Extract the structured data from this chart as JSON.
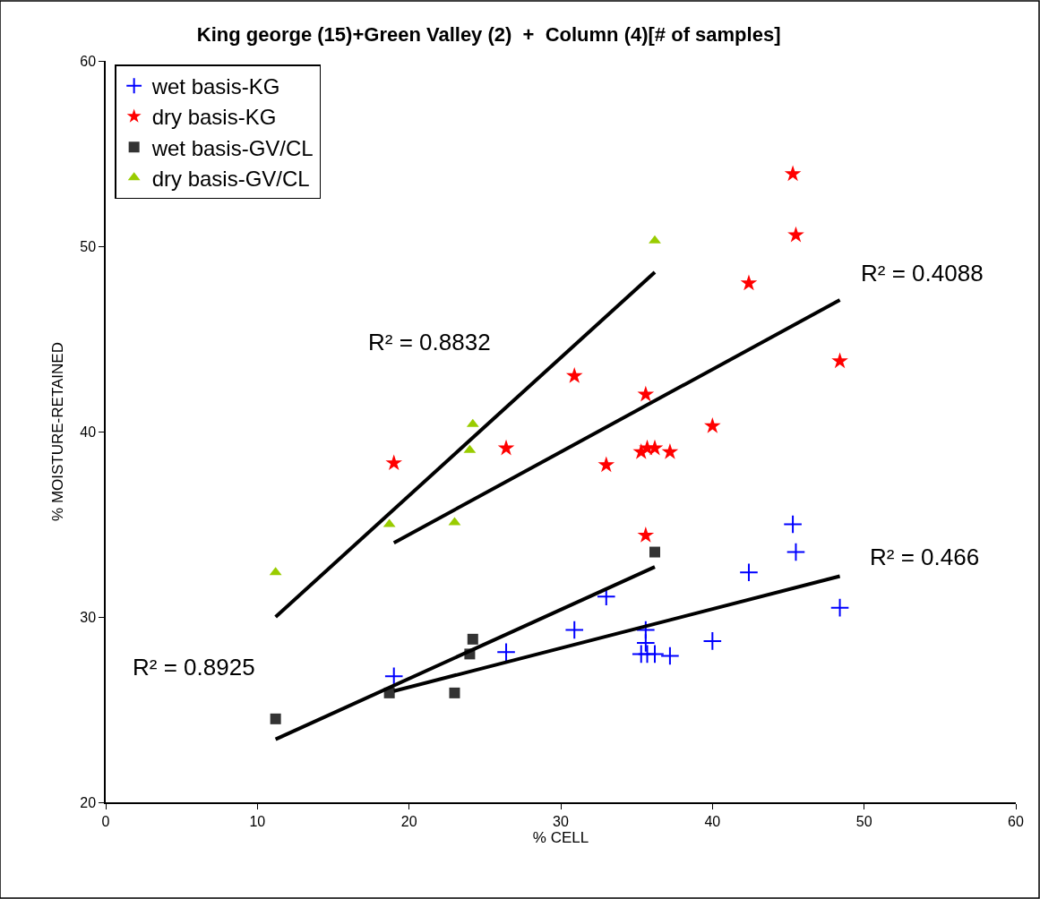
{
  "chart_data": {
    "type": "scatter",
    "title": "King george (15)+Green Valley (2)  +  Column (4)[# of samples]",
    "xlabel": "% CELL",
    "ylabel": "% MOISTURE-RETAINED",
    "xlim": [
      0,
      60
    ],
    "xticks": [
      0,
      10,
      20,
      30,
      40,
      50,
      60
    ],
    "ylim": [
      20,
      60
    ],
    "yticks": [
      20,
      30,
      40,
      50,
      60
    ],
    "legend": "top left",
    "series": [
      {
        "name": "wet basis-KG",
        "color": "#0000ff",
        "marker": "cross",
        "x": [
          19.0,
          26.4,
          30.9,
          33.0,
          35.6,
          35.6,
          35.3,
          35.7,
          36.2,
          37.2,
          40.0,
          42.4,
          45.3,
          45.5,
          48.4
        ],
        "values": [
          26.8,
          28.1,
          29.3,
          31.1,
          29.3,
          28.6,
          28.0,
          28.0,
          28.0,
          27.9,
          28.7,
          32.4,
          35.0,
          33.5,
          30.5
        ]
      },
      {
        "name": "dry basis-KG",
        "color": "#ff0000",
        "marker": "star",
        "x": [
          19.0,
          26.4,
          30.9,
          33.0,
          35.6,
          35.6,
          35.3,
          35.7,
          36.2,
          37.2,
          40.0,
          42.4,
          45.3,
          45.5,
          48.4
        ],
        "values": [
          38.3,
          39.1,
          43.0,
          38.2,
          42.0,
          34.4,
          38.9,
          39.1,
          39.1,
          38.9,
          40.3,
          48.0,
          53.9,
          50.6,
          43.8
        ]
      },
      {
        "name": "wet basis-GV/CL",
        "color": "#333333",
        "marker": "square",
        "x": [
          11.2,
          18.7,
          23.0,
          24.0,
          24.2,
          36.2
        ],
        "values": [
          24.5,
          25.9,
          25.9,
          28.0,
          28.8,
          33.5
        ]
      },
      {
        "name": "dry basis-GV/CL",
        "color": "#99cc00",
        "marker": "triangle",
        "x": [
          11.2,
          18.7,
          23.0,
          24.0,
          24.2,
          36.2
        ],
        "values": [
          32.4,
          35.0,
          35.1,
          39.0,
          40.4,
          50.3
        ]
      },
      {
        "type": "line",
        "color": "#000000",
        "marker": "none",
        "x": [
          11.2,
          36.2
        ],
        "values": [
          30.0,
          48.6
        ]
      },
      {
        "type": "line",
        "color": "#000000",
        "marker": "none",
        "x": [
          19.0,
          48.4
        ],
        "values": [
          34.0,
          47.1
        ]
      },
      {
        "type": "line",
        "color": "#000000",
        "marker": "none",
        "x": [
          11.2,
          36.2
        ],
        "values": [
          23.4,
          32.7
        ]
      },
      {
        "type": "line",
        "color": "#000000",
        "marker": "none",
        "x": [
          19.0,
          48.4
        ],
        "values": [
          26.0,
          32.2
        ]
      }
    ],
    "annotations": [
      "R² = 0.8832",
      "R² = 0.4088",
      "R² = 0.466",
      "R² = 0.8925"
    ]
  }
}
